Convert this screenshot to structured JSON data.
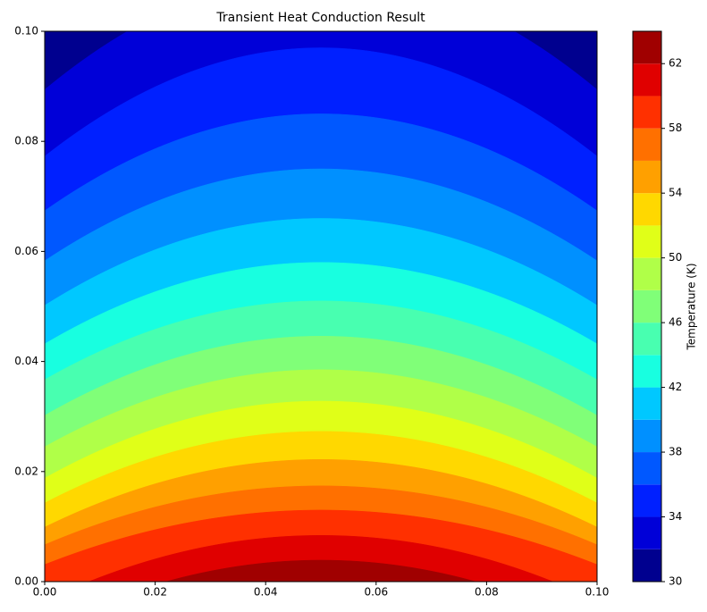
{
  "chart_data": {
    "type": "contourf",
    "title": "Transient Heat Conduction Result",
    "xlim": [
      0,
      0.1
    ],
    "ylim": [
      0,
      0.1
    ],
    "xticks": [
      {
        "value": 0,
        "label": "0.00"
      },
      {
        "value": 0.02,
        "label": "0.02"
      },
      {
        "value": 0.04,
        "label": "0.04"
      },
      {
        "value": 0.06,
        "label": "0.06"
      },
      {
        "value": 0.08,
        "label": "0.08"
      },
      {
        "value": 0.1,
        "label": "0.10"
      }
    ],
    "yticks": [
      {
        "value": 0,
        "label": "0.00"
      },
      {
        "value": 0.02,
        "label": "0.02"
      },
      {
        "value": 0.04,
        "label": "0.04"
      },
      {
        "value": 0.06,
        "label": "0.06"
      },
      {
        "value": 0.08,
        "label": "0.08"
      },
      {
        "value": 0.1,
        "label": "0.10"
      }
    ],
    "levels": [
      30,
      32,
      34,
      36,
      38,
      40,
      42,
      44,
      46,
      48,
      50,
      52,
      54,
      56,
      58,
      60,
      62,
      64
    ],
    "colors": [
      "#00008f",
      "#0000d8",
      "#0020ff",
      "#0058ff",
      "#0090ff",
      "#00c8ff",
      "#18ffe0",
      "#48ffb0",
      "#80ff78",
      "#b0ff48",
      "#e0ff18",
      "#ffd800",
      "#ffa000",
      "#ff7000",
      "#ff3000",
      "#e00000",
      "#a00000"
    ],
    "contour_y_center": [
      0.1102,
      0.097,
      0.085,
      0.075,
      0.066,
      0.058,
      0.051,
      0.0446,
      0.0385,
      0.0328,
      0.0273,
      0.0222,
      0.0174,
      0.013,
      0.0084,
      0.0039
    ],
    "contour_y_edge": [
      0.0894,
      0.0773,
      0.0674,
      0.0583,
      0.0502,
      0.0432,
      0.0367,
      0.0302,
      0.0245,
      0.0188,
      0.0143,
      0.0099,
      0.0067,
      0.0031,
      -0.0035,
      -0.0085
    ],
    "colorbar_label": "Temperature (K)",
    "colorbar_ticks": [
      30,
      34,
      38,
      42,
      46,
      50,
      54,
      58,
      62
    ]
  }
}
